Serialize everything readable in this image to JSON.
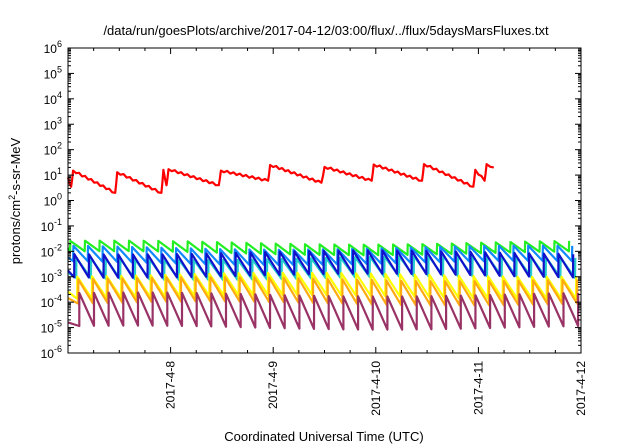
{
  "chart_data": {
    "type": "line",
    "title": "/data/run/goesPlots/archive/2017-04-12/03:00/flux/../flux/5daysMarsFluxes.txt",
    "xlabel": "Coordinated Universal Time (UTC)",
    "ylabel_main": "protons/cm",
    "ylabel_sup": "2",
    "ylabel_rest": "-s-sr-MeV",
    "y_scale": "log",
    "ylim": [
      1e-06,
      1000000.0
    ],
    "xlim": [
      "2017-04-07 03:00",
      "2017-04-12 03:00"
    ],
    "grid": false,
    "legend": "none",
    "y_ticks": [
      {
        "base": "10",
        "exp": "-6"
      },
      {
        "base": "10",
        "exp": "-5"
      },
      {
        "base": "10",
        "exp": "-4"
      },
      {
        "base": "10",
        "exp": "-3"
      },
      {
        "base": "10",
        "exp": "-2"
      },
      {
        "base": "10",
        "exp": "-1"
      },
      {
        "base": "10",
        "exp": "0"
      },
      {
        "base": "10",
        "exp": "1"
      },
      {
        "base": "10",
        "exp": "2"
      },
      {
        "base": "10",
        "exp": "3"
      },
      {
        "base": "10",
        "exp": "4"
      },
      {
        "base": "10",
        "exp": "5"
      },
      {
        "base": "10",
        "exp": "6"
      }
    ],
    "x_ticks": [
      "2017-4-8",
      "2017-4-9",
      "2017-4-10",
      "2017-4-11",
      "2017-4-12"
    ],
    "series": [
      {
        "color": "#ff0000",
        "kind": "ramp",
        "peaks": [
          [
            0.0,
            8.0
          ],
          [
            0.05,
            15.0
          ],
          [
            0.48,
            13.0
          ],
          [
            0.93,
            16.0
          ],
          [
            0.98,
            17.0
          ],
          [
            1.49,
            15.0
          ],
          [
            1.97,
            25.0
          ],
          [
            2.5,
            21.0
          ],
          [
            2.98,
            26.0
          ],
          [
            3.47,
            27.0
          ],
          [
            3.97,
            16.0
          ],
          [
            4.08,
            27.0
          ]
        ],
        "troughs": [
          [
            0.03,
            3.5
          ],
          [
            0.46,
            2.0
          ],
          [
            0.91,
            2.0
          ],
          [
            0.96,
            4.0
          ],
          [
            1.47,
            4.0
          ],
          [
            1.95,
            6.0
          ],
          [
            2.47,
            5.0
          ],
          [
            2.96,
            6.0
          ],
          [
            3.45,
            6.0
          ],
          [
            3.95,
            3.5
          ],
          [
            4.06,
            6.0
          ],
          [
            4.15,
            20.0
          ]
        ]
      },
      {
        "color": "#22ee22",
        "kind": "saw",
        "period": 0.143,
        "phase": 0.02,
        "peak": 0.022,
        "trough": 0.0085,
        "wave": 0.0024
      },
      {
        "color": "#1188ff",
        "kind": "saw",
        "period": 0.143,
        "phase": 0.05,
        "peak": 0.014,
        "trough": 0.0035,
        "wave": 0.0024
      },
      {
        "color": "#22cccc",
        "kind": "saw",
        "period": 0.143,
        "phase": 0.08,
        "peak": 0.0055,
        "trough": 0.0009,
        "wave": 0.0022
      },
      {
        "color": "#1111cc",
        "kind": "saw",
        "period": 0.143,
        "phase": 0.06,
        "peak": 0.009,
        "trough": 0.0011,
        "wave": 0.0016
      },
      {
        "color": "#ffff00",
        "kind": "saw",
        "period": 0.143,
        "phase": 0.09,
        "peak": 0.0012,
        "trough": 0.00016,
        "wave": 0.0008
      },
      {
        "color": "#ffaa11",
        "kind": "saw",
        "period": 0.143,
        "phase": 0.1,
        "peak": 0.0008,
        "trough": 9e-05,
        "wave": 0.0006
      },
      {
        "color": "#993366",
        "kind": "saw",
        "period": 0.143,
        "phase": 0.11,
        "peak": 0.0002,
        "trough": 1e-05,
        "wave": 0.0003
      }
    ]
  }
}
